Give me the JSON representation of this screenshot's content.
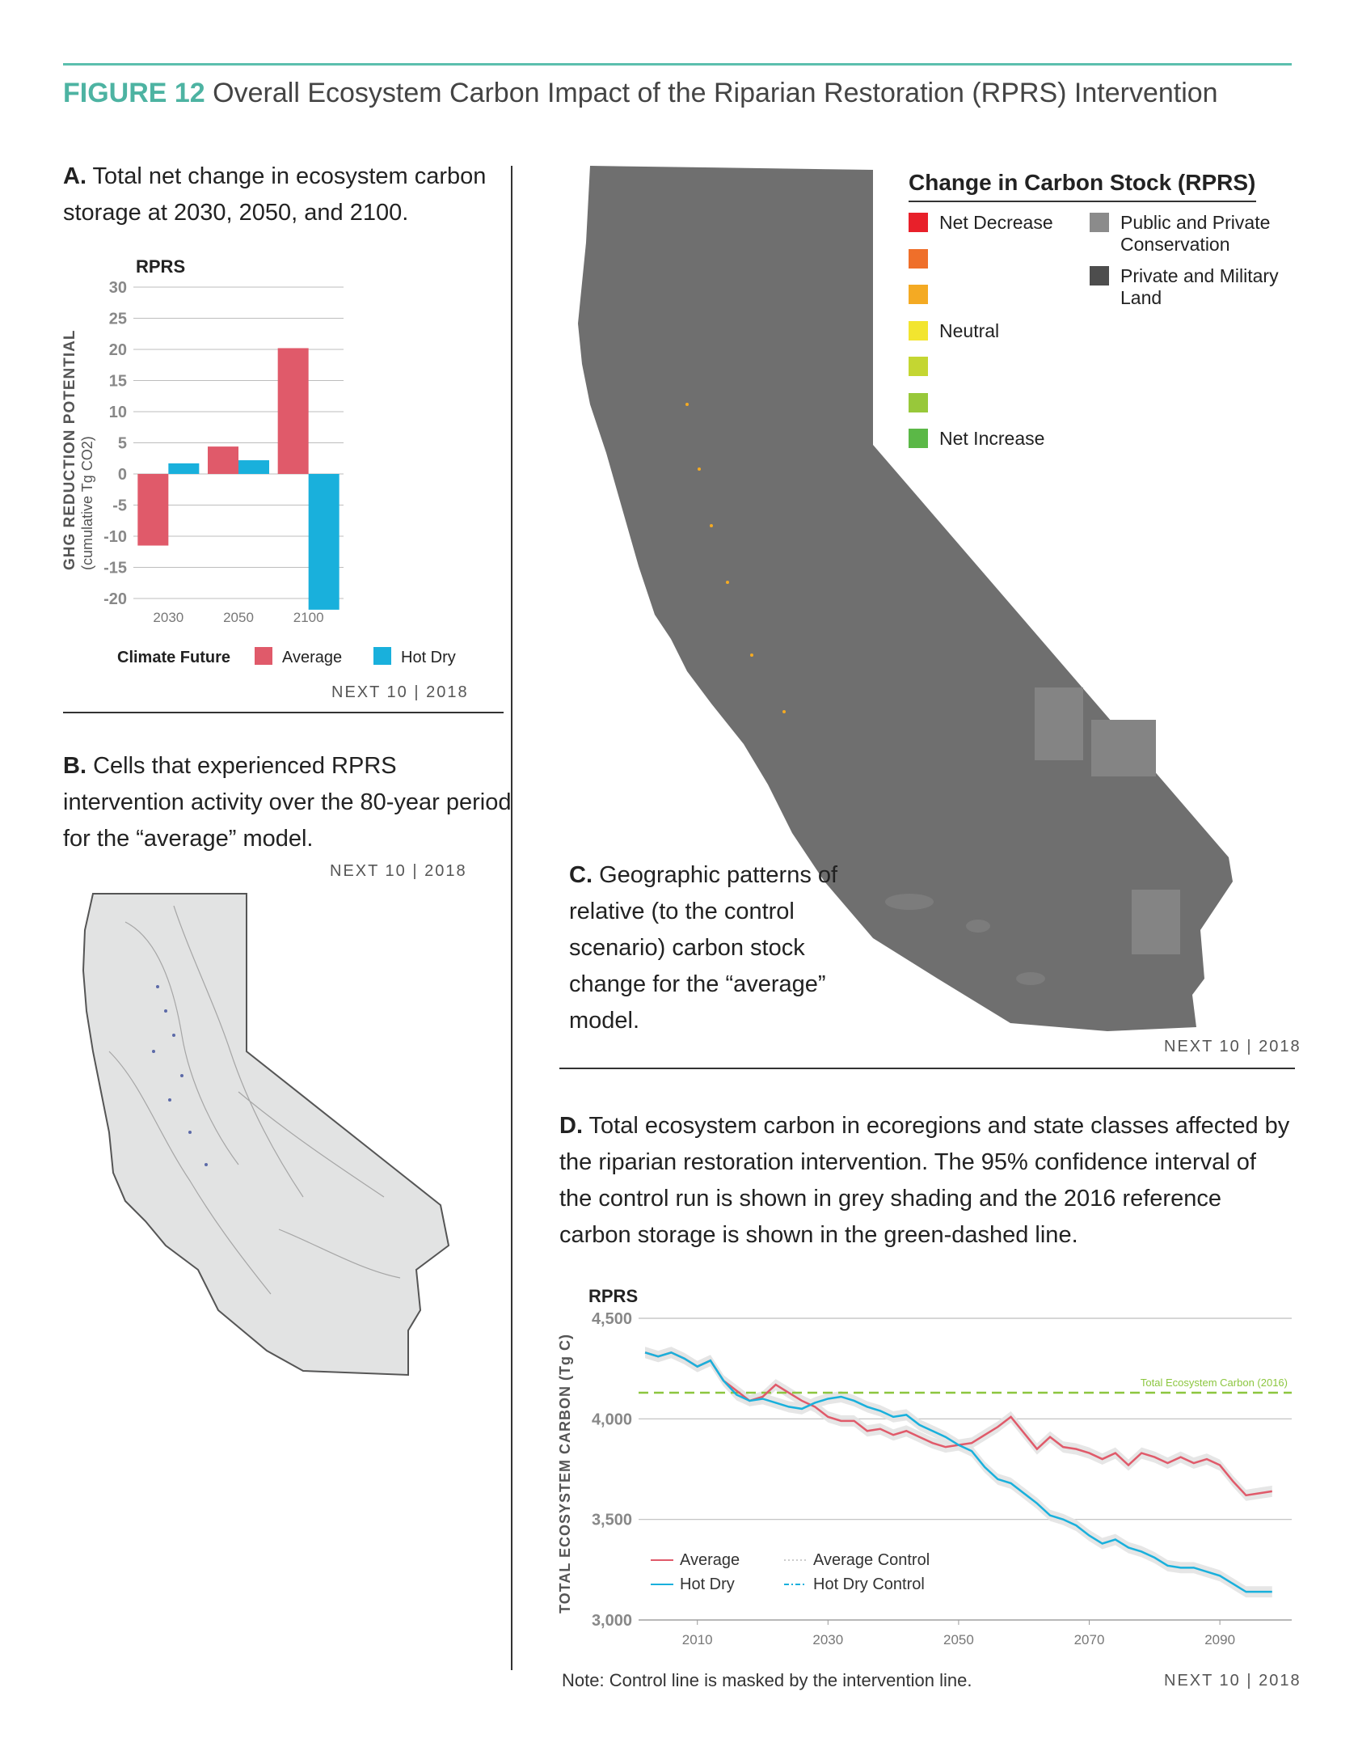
{
  "figure": {
    "number": "FIGURE 12",
    "title": "Overall Ecosystem Carbon Impact of the Riparian Restoration (RPRS) Intervention"
  },
  "panel_a": {
    "letter": "A.",
    "caption": "Total net change in ecosystem carbon storage at 2030, 2050, and 2100.",
    "chart_title": "RPRS",
    "ylabel_line1": "GHG REDUCTION POTENTIAL",
    "ylabel_line2": "(cumulative Tg CO2)",
    "legend_label": "Climate Future",
    "credit": "NEXT 10 | 2018"
  },
  "panel_b": {
    "letter": "B.",
    "caption": "Cells that experienced RPRS intervention activity over the 80-year period for the “average” model.",
    "credit": "NEXT 10 | 2018"
  },
  "panel_c": {
    "letter": "C.",
    "caption": "Geographic patterns of relative (to the control scenario) carbon stock change for the “average” model.",
    "credit": "NEXT 10 | 2018",
    "legend_title": "Change in Carbon Stock (RPRS)",
    "legend_left": [
      {
        "label": "Net Decrease",
        "color": "#e8202a"
      },
      {
        "label": "",
        "color": "#ef6f2a"
      },
      {
        "label": "",
        "color": "#f4aa23"
      },
      {
        "label": "Neutral",
        "color": "#f2e52f"
      },
      {
        "label": "",
        "color": "#c4d632"
      },
      {
        "label": "",
        "color": "#98c83a"
      },
      {
        "label": "Net Increase",
        "color": "#5bb847"
      }
    ],
    "legend_right": [
      {
        "label": "Public and Private Conservation",
        "color": "#8b8b8b"
      },
      {
        "label": "Private and Military Land",
        "color": "#4d4d4d"
      }
    ]
  },
  "panel_d": {
    "letter": "D.",
    "caption": "Total ecosystem carbon in ecoregions and state classes affected by the riparian restoration intervention. The 95% confidence interval of the control run is shown in grey shading and the 2016 reference carbon storage is shown in the green-dashed line.",
    "chart_title": "RPRS",
    "ylabel": "TOTAL ECOSYSTEM CARBON (Tg C)",
    "reference_label": "Total Ecosystem Carbon (2016)",
    "note": "Note: Control line is masked by the intervention line.",
    "credit": "NEXT 10 | 2018"
  },
  "colors": {
    "average": "#e05a6a",
    "hot_dry": "#19b0dc",
    "accent": "#4db3a2",
    "reference": "#8cc63f",
    "band": "#e3e3e3",
    "map_c": "#6f6f6f",
    "map_b": "#e2e3e3"
  },
  "chart_data": [
    {
      "type": "bar",
      "title": "RPRS",
      "ylabel": "GHG REDUCTION POTENTIAL (cumulative Tg CO2)",
      "categories": [
        "2030",
        "2050",
        "2100"
      ],
      "ylim": [
        -20,
        30
      ],
      "yticks": [
        30,
        25,
        20,
        15,
        10,
        5,
        0,
        -5,
        -10,
        -15,
        -20
      ],
      "grid": true,
      "legend_title": "Climate Future",
      "legend_position": "bottom",
      "series": [
        {
          "name": "Average",
          "color": "#e05a6a",
          "values": [
            -11.5,
            4.4,
            20.2
          ]
        },
        {
          "name": "Hot Dry",
          "color": "#19b0dc",
          "values": [
            1.7,
            2.2,
            -21.8
          ]
        }
      ]
    },
    {
      "type": "line",
      "title": "RPRS",
      "ylabel": "TOTAL ECOSYSTEM CARBON (Tg C)",
      "xlim": [
        2001,
        2101
      ],
      "ylim": [
        3000,
        4500
      ],
      "xticks": [
        2010,
        2030,
        2050,
        2070,
        2090
      ],
      "yticks": [
        "3,000",
        "3,500",
        "4,000",
        "4,500"
      ],
      "ytick_values": [
        3000,
        3500,
        4000,
        4500
      ],
      "grid": true,
      "legend_position": "bottom-left",
      "reference": {
        "label": "Total Ecosystem Carbon (2016)",
        "value": 4130
      },
      "series": [
        {
          "name": "Average",
          "color": "#e05a6a",
          "x": [
            2002,
            2004,
            2006,
            2008,
            2010,
            2012,
            2014,
            2016,
            2018,
            2020,
            2022,
            2024,
            2026,
            2028,
            2030,
            2032,
            2034,
            2036,
            2038,
            2040,
            2042,
            2044,
            2046,
            2048,
            2050,
            2052,
            2054,
            2056,
            2058,
            2060,
            2062,
            2064,
            2066,
            2068,
            2070,
            2072,
            2074,
            2076,
            2078,
            2080,
            2082,
            2084,
            2086,
            2088,
            2090,
            2092,
            2094,
            2096,
            2098
          ],
          "y": [
            4330,
            4310,
            4330,
            4300,
            4260,
            4290,
            4190,
            4140,
            4090,
            4110,
            4170,
            4130,
            4090,
            4060,
            4010,
            3990,
            3990,
            3940,
            3950,
            3920,
            3940,
            3910,
            3880,
            3860,
            3870,
            3880,
            3920,
            3960,
            4010,
            3930,
            3850,
            3910,
            3860,
            3850,
            3830,
            3800,
            3830,
            3770,
            3830,
            3810,
            3780,
            3810,
            3780,
            3800,
            3770,
            3690,
            3620,
            3630,
            3640
          ]
        },
        {
          "name": "Hot Dry",
          "color": "#19b0dc",
          "x": [
            2002,
            2004,
            2006,
            2008,
            2010,
            2012,
            2014,
            2016,
            2018,
            2020,
            2022,
            2024,
            2026,
            2028,
            2030,
            2032,
            2034,
            2036,
            2038,
            2040,
            2042,
            2044,
            2046,
            2048,
            2050,
            2052,
            2054,
            2056,
            2058,
            2060,
            2062,
            2064,
            2066,
            2068,
            2070,
            2072,
            2074,
            2076,
            2078,
            2080,
            2082,
            2084,
            2086,
            2088,
            2090,
            2092,
            2094,
            2096,
            2098
          ],
          "y": [
            4330,
            4310,
            4330,
            4300,
            4260,
            4290,
            4190,
            4120,
            4090,
            4100,
            4080,
            4060,
            4050,
            4080,
            4100,
            4110,
            4090,
            4060,
            4040,
            4010,
            4020,
            3970,
            3940,
            3910,
            3870,
            3840,
            3760,
            3700,
            3680,
            3630,
            3580,
            3520,
            3500,
            3470,
            3420,
            3380,
            3400,
            3360,
            3340,
            3310,
            3270,
            3260,
            3260,
            3240,
            3220,
            3180,
            3140,
            3140,
            3140
          ]
        },
        {
          "name": "Average Control",
          "color": "#cccccc",
          "style": "dotted"
        },
        {
          "name": "Hot Dry Control",
          "color": "#19b0dc",
          "style": "dashdot"
        }
      ]
    }
  ]
}
